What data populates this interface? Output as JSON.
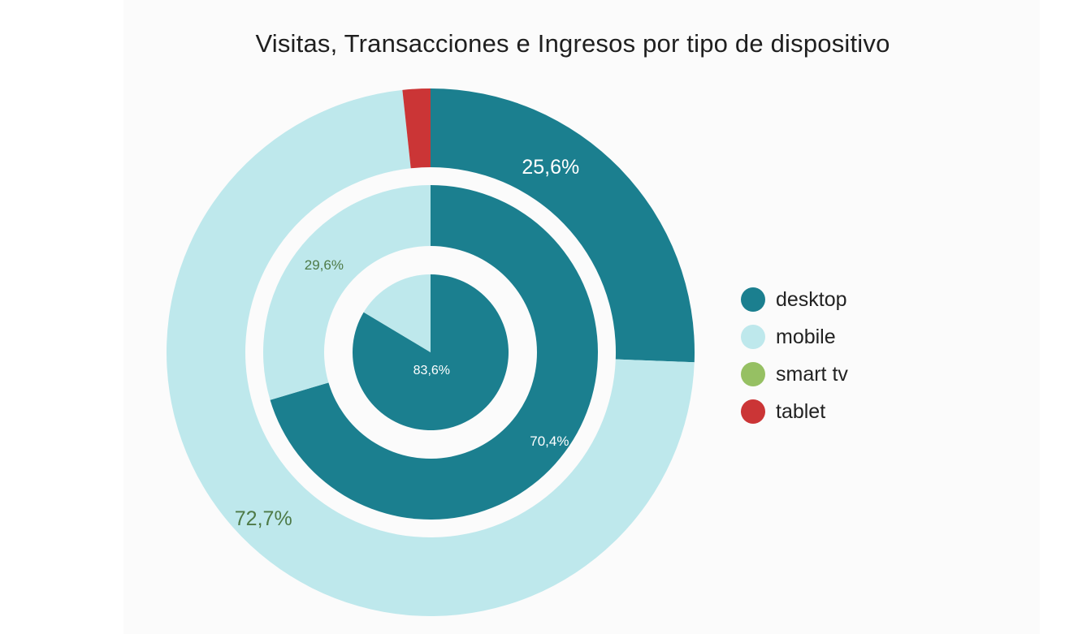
{
  "chart_data": {
    "type": "pie",
    "subtype": "nested-donut",
    "title": "Visitas, Transacciones e Ingresos por tipo de dispositivo",
    "categories": [
      "desktop",
      "mobile",
      "smart tv",
      "tablet"
    ],
    "colors": {
      "desktop": "#1b7f8f",
      "mobile": "#bee8ec",
      "smart tv": "#96c063",
      "tablet": "#cb3536"
    },
    "series": [
      {
        "name": "Visitas",
        "ring": "outer",
        "values": [
          25.6,
          72.7,
          0.0,
          1.7
        ],
        "labels": [
          {
            "category": "desktop",
            "text": "25,6%",
            "color": "#ffffff"
          },
          {
            "category": "mobile",
            "text": "72,7%",
            "color": "#4e7a47"
          }
        ]
      },
      {
        "name": "Transacciones",
        "ring": "middle",
        "values": [
          70.4,
          29.6,
          0.0,
          0.0
        ],
        "labels": [
          {
            "category": "desktop",
            "text": "70,4%",
            "color": "#ffffff"
          },
          {
            "category": "mobile",
            "text": "29,6%",
            "color": "#4e7a47"
          }
        ]
      },
      {
        "name": "Ingresos",
        "ring": "inner",
        "values": [
          83.6,
          16.4,
          0.0,
          0.0
        ],
        "labels": [
          {
            "category": "desktop",
            "text": "83,6%",
            "color": "#ffffff"
          }
        ]
      }
    ],
    "legend": {
      "position": "right",
      "items": [
        "desktop",
        "mobile",
        "smart tv",
        "tablet"
      ]
    }
  }
}
